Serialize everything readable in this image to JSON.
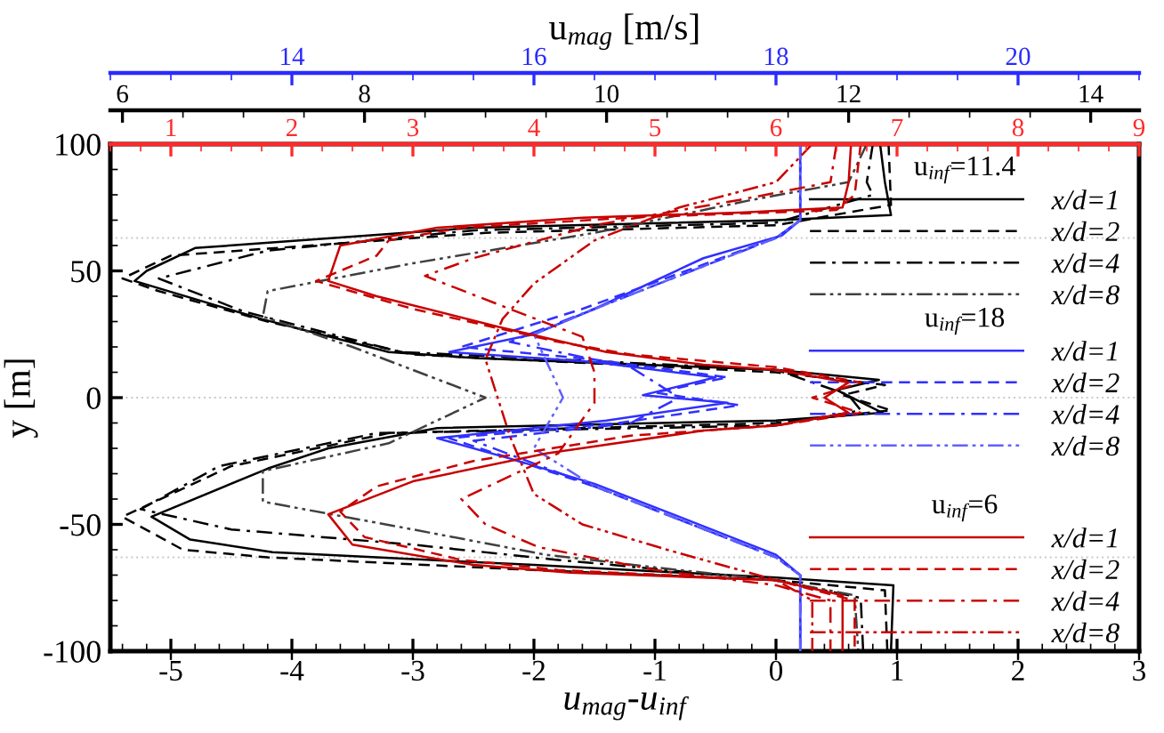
{
  "chart_data": [
    {
      "type": "line",
      "xlabel": "u$_{mag}$-u$_{inf}$",
      "ylabel": "y [m]",
      "xlim": [
        -5.5,
        3
      ],
      "xticks": [
        -5,
        -4,
        -3,
        -2,
        -1,
        0,
        1,
        2,
        3
      ],
      "ylim": [
        -100,
        100
      ],
      "yticks": [
        -100,
        -50,
        0,
        50,
        100
      ],
      "x2lim": [
        5.9,
        14.4
      ],
      "x2ticks": [
        6,
        8,
        10,
        12,
        14
      ],
      "legend": "right",
      "legend_title": "u$_{inf}$=11.4",
      "ref_lines": [
        {
          "axis": "y",
          "value": 63,
          "color": "#c8c8c8",
          "line_style": "dotted"
        },
        {
          "axis": "y",
          "value": 0,
          "color": "#c8c8c8",
          "line_style": "dotted"
        },
        {
          "axis": "y",
          "value": -63,
          "color": "#c8c8c8",
          "line_style": "dotted"
        }
      ],
      "series": [
        {
          "name": "x/d=1",
          "color": "#000000",
          "line_style": "solid",
          "x": [
            0.86,
            0.9,
            0.95,
            0.0,
            -2.5,
            -4.8,
            -5.2,
            -5.3,
            -4.25,
            -3.2,
            -2.45,
            0,
            0.85,
            0.5,
            0.88,
            0,
            -2.8,
            -3.7,
            -4.2,
            -5.16,
            -4.84,
            -4.16,
            -2,
            0,
            0.97,
            0.95
          ],
          "values": [
            100,
            85,
            72,
            70,
            67,
            59,
            50,
            46,
            31,
            18,
            15.5,
            11,
            7,
            3,
            -6,
            -9,
            -12,
            -20,
            -28,
            -47,
            -56,
            -61,
            -66,
            -71,
            -74,
            -100
          ]
        },
        {
          "name": "x/d=2",
          "color": "#000000",
          "line_style": "dashed",
          "x": [
            0.93,
            0.95,
            0,
            -2.4,
            -5.0,
            -5.4,
            -5.1,
            -4.2,
            -3.0,
            0,
            0.9,
            0.55,
            0.95,
            0,
            -3.2,
            -4.5,
            -5.4,
            -4.9,
            -4.2,
            -2,
            0,
            0.9,
            0.92
          ],
          "values": [
            100,
            76,
            68,
            65,
            56,
            47,
            42,
            30,
            17,
            10,
            5,
            1,
            -5,
            -10,
            -14,
            -27,
            -47,
            -60,
            -63,
            -68,
            -72,
            -76,
            -100
          ]
        },
        {
          "name": "x/d=4",
          "color": "#000000",
          "line_style": "dashdot",
          "x": [
            0.8,
            0.75,
            0.8,
            0,
            -2.5,
            -4.2,
            -5.1,
            -4.4,
            -3.1,
            0,
            0.6,
            0.7,
            0,
            -3.3,
            -4.6,
            -5.25,
            -4.5,
            -3,
            -1.8,
            0,
            0.7,
            0.72
          ],
          "values": [
            100,
            85,
            80,
            69,
            66,
            58,
            47,
            34,
            18,
            11,
            1,
            -5,
            -11,
            -14,
            -27,
            -44,
            -52,
            -58,
            -64,
            -72,
            -79,
            -100
          ]
        },
        {
          "name": "x/d=8",
          "color": "#404040",
          "line_style": "dashdotdot",
          "x": [
            0.75,
            0.6,
            -0.2,
            -1.5,
            -3.0,
            -4.2,
            -4.24,
            -3.5,
            -2.4,
            -3.2,
            -4.24,
            -4.24,
            -3,
            -1.9,
            -0.8,
            0,
            0.65,
            0.68
          ],
          "values": [
            100,
            85,
            78,
            65,
            53,
            42,
            32,
            20,
            0,
            -18,
            -29,
            -41,
            -52,
            -62,
            -68,
            -72,
            -78,
            -100
          ]
        }
      ]
    },
    {
      "type": "line",
      "xlim": [
        -5.5,
        3
      ],
      "ylim": [
        -100,
        100
      ],
      "tick_labels": false,
      "x2lim": [
        12.5,
        21
      ],
      "x2ticks": [
        14,
        16,
        18,
        20
      ],
      "x2label": "u$_{mag}$ [m/s]",
      "legend": "right",
      "legend_title": "u$_{inf}$=18",
      "series": [
        {
          "name": "x/d=1",
          "color": "#3030ff",
          "line_style": "solid",
          "x": [
            0.2,
            0.2,
            0.05,
            -0.6,
            -1.5,
            -2.0,
            -2.7,
            -1.5,
            -0.5,
            -1.1,
            -0.4,
            -1.4,
            -2.8,
            -2.2,
            -1.5,
            -0.8,
            0,
            0.2,
            0.2
          ],
          "values": [
            100,
            70,
            64,
            55,
            35,
            25,
            18,
            14,
            8,
            1,
            -2,
            -9,
            -16,
            -24,
            -34,
            -47,
            -62,
            -70,
            -100
          ]
        },
        {
          "name": "x/d=2",
          "color": "#3030ff",
          "line_style": "dashed",
          "x": [
            0.2,
            0.2,
            0.0,
            -1.6,
            -2.6,
            -1.5,
            -0.4,
            -1.0,
            -0.3,
            -1.3,
            -2.7,
            -1.5,
            0.0,
            0.2,
            0.2
          ],
          "values": [
            100,
            70,
            63,
            35,
            20,
            15,
            8,
            2,
            -3,
            -10,
            -16,
            -35,
            -63,
            -70,
            -100
          ]
        },
        {
          "name": "x/d=4",
          "color": "#3030ff",
          "line_style": "dashdot",
          "x": [
            0.2,
            0.2,
            0.0,
            -1.5,
            -2.2,
            -1.2,
            -0.8,
            -1.2,
            -2.5,
            -1.5,
            0,
            0.2,
            0.2
          ],
          "values": [
            100,
            70,
            63,
            35,
            22,
            12,
            0,
            -10,
            -17,
            -35,
            -63,
            -70,
            -100
          ]
        },
        {
          "name": "x/d=8",
          "color": "#6060ff",
          "line_style": "dashdotdot",
          "x": [
            0.2,
            0.2,
            0.0,
            -1.5,
            -2.0,
            -1.76,
            -2.0,
            -1.5,
            0,
            0.2,
            0.2
          ],
          "values": [
            100,
            70,
            63,
            35,
            25,
            0,
            -20,
            -35,
            -63,
            -70,
            -100
          ]
        }
      ]
    },
    {
      "type": "line",
      "xlim": [
        -5.5,
        3
      ],
      "ylim": [
        -100,
        100
      ],
      "tick_labels": false,
      "x2lim": [
        0.5,
        9
      ],
      "x2ticks": [
        1,
        2,
        3,
        4,
        5,
        6,
        7,
        8,
        9
      ],
      "legend": "right",
      "legend_title": "u$_{inf}$=6",
      "series": [
        {
          "name": "x/d=1",
          "color": "#c80000",
          "line_style": "solid",
          "x": [
            0.62,
            0.6,
            0.55,
            -0.3,
            -1.6,
            -2.8,
            -3.6,
            -3.7,
            -3.3,
            -2.3,
            -1.4,
            -0.6,
            0,
            0.6,
            0.4,
            0.6,
            0,
            -0.6,
            -1.9,
            -3.0,
            -3.7,
            -3.5,
            -2.5,
            -1.7,
            0,
            0.55,
            0.55
          ],
          "values": [
            100,
            85,
            75,
            73,
            71,
            67,
            60,
            46,
            40,
            28,
            18,
            13,
            11,
            6,
            0,
            -6,
            -11,
            -13,
            -22,
            -33,
            -46,
            -58,
            -66,
            -69,
            -72,
            -78,
            -100
          ]
        },
        {
          "name": "x/d=2",
          "color": "#c80000",
          "line_style": "dashed",
          "x": [
            0.7,
            0.65,
            0.5,
            -1.2,
            -2.6,
            -3.2,
            -3.3,
            -3.8,
            -3.0,
            -1.8,
            -1.2,
            0,
            0.7,
            0.3,
            0.7,
            0,
            -1.2,
            -2.5,
            -3.3,
            -3.6,
            -3.4,
            -2.6,
            -1.8,
            0,
            0.65,
            0.65
          ],
          "values": [
            100,
            80,
            74,
            71,
            67,
            62,
            56,
            46,
            35,
            22,
            17,
            12,
            6,
            0,
            -6,
            -11,
            -15,
            -25,
            -35,
            -45,
            -55,
            -64,
            -68,
            -72,
            -80,
            -100
          ]
        },
        {
          "name": "x/d=4",
          "color": "#c80000",
          "line_style": "dashdot",
          "x": [
            0.5,
            0.45,
            -0.3,
            -1.5,
            -2.5,
            -2.9,
            -2.2,
            -1.6,
            -1.5,
            -1.5,
            -1.8,
            -2.6,
            -2.4,
            -1.96,
            -1.0,
            0,
            0.45,
            0.45
          ],
          "values": [
            100,
            85,
            78,
            68,
            55,
            48,
            35,
            24,
            10,
            -2,
            -22,
            -40,
            -50,
            -59,
            -68,
            -74,
            -80,
            -100
          ]
        },
        {
          "name": "x/d=8",
          "color": "#c80000",
          "line_style": "dashdotdot",
          "x": [
            0.3,
            0.0,
            -0.8,
            -1.5,
            -2.0,
            -2.26,
            -2.4,
            -2.3,
            -2.2,
            -2.0,
            -1.6,
            -0.9,
            0,
            0.3,
            0.3
          ],
          "values": [
            100,
            85,
            75,
            62,
            45,
            31,
            15,
            0,
            -15,
            -38,
            -50,
            -60,
            -72,
            -80,
            -100
          ]
        }
      ]
    }
  ]
}
